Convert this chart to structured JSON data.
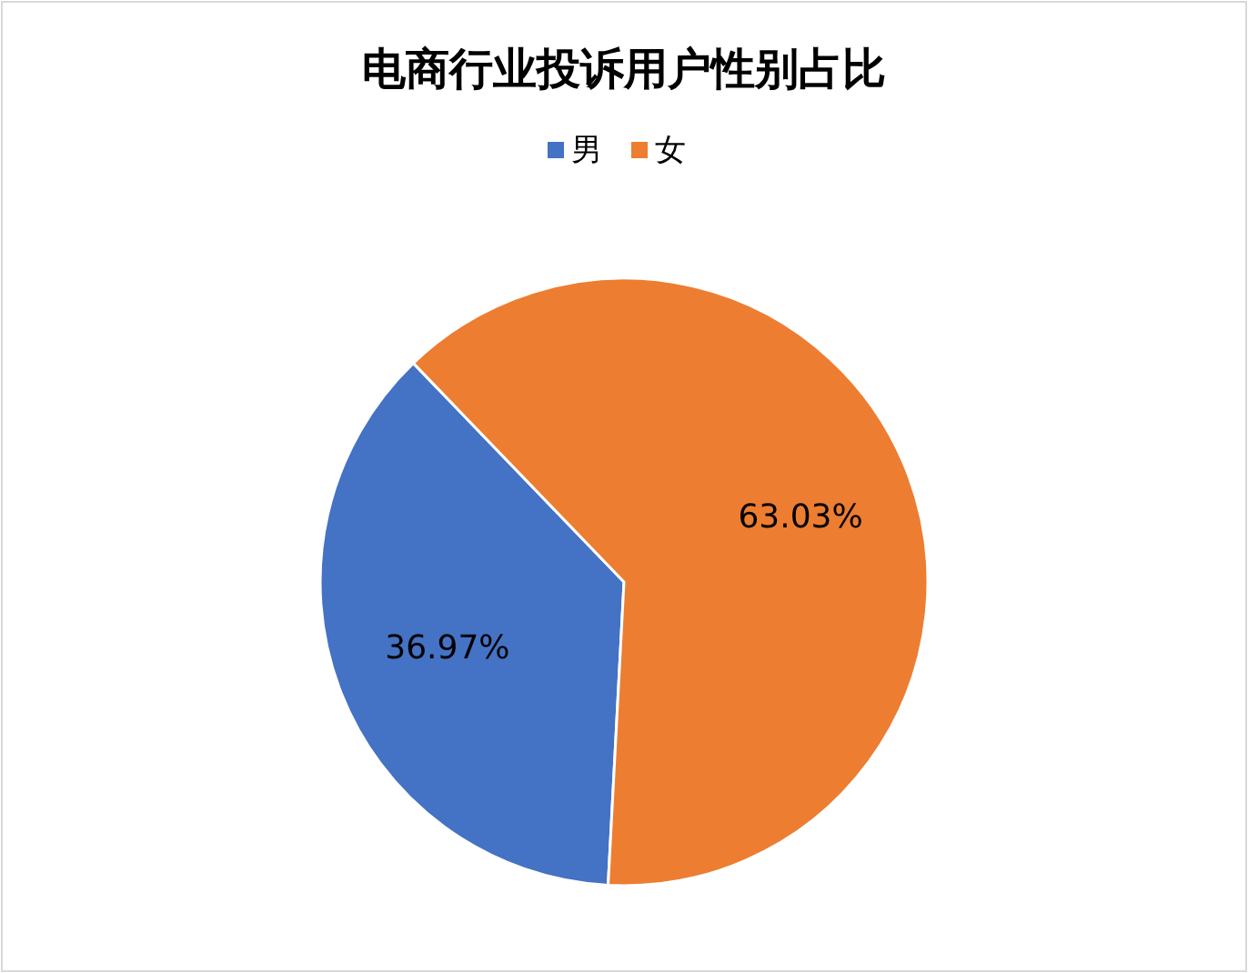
{
  "chart_data": {
    "type": "pie",
    "title": "电商行业投诉用户性别占比",
    "categories": [
      "男",
      "女"
    ],
    "values": [
      36.97,
      63.03
    ],
    "colors": [
      "#4472c4",
      "#ed7d31"
    ],
    "value_labels": [
      "36.97%",
      "63.03%"
    ],
    "legend": "top"
  }
}
